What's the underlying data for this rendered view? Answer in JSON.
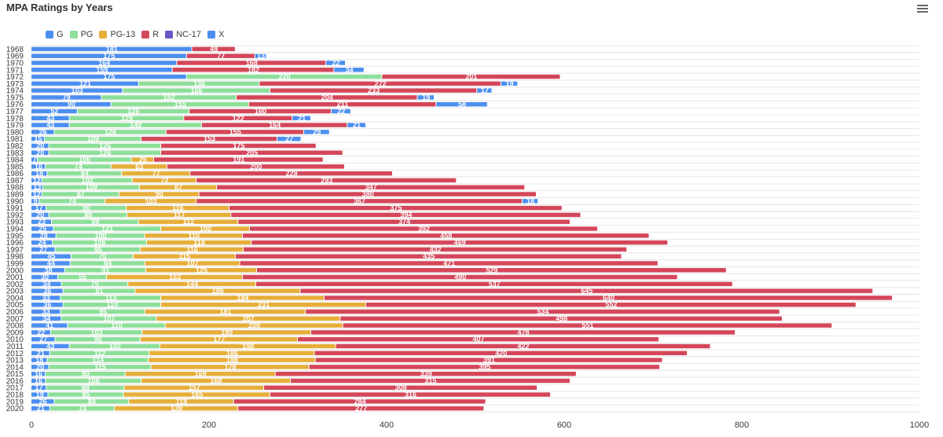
{
  "header": {
    "title": "MPA Ratings by Years"
  },
  "colors": {
    "G": "#4c8ff0",
    "PG": "#8ddf9a",
    "PG-13": "#e6ae3a",
    "R": "#d4475a",
    "NC-17": "#6b57c7",
    "X": "#4c8ff0"
  },
  "icons": {
    "menu": "hamburger-menu-icon"
  },
  "chart_data": {
    "type": "bar",
    "orientation": "horizontal",
    "stacked": true,
    "title": "MPA Ratings by Years",
    "xlim": [
      0,
      1000
    ],
    "xticks": [
      0,
      200,
      400,
      600,
      800,
      1000
    ],
    "grid": true,
    "legend_position": "top-left",
    "categories": [
      "1968",
      "1969",
      "1970",
      "1971",
      "1972",
      "1973",
      "1974",
      "1975",
      "1976",
      "1977",
      "1978",
      "1979",
      "1980",
      "1981",
      "1982",
      "1983",
      "1984",
      "1985",
      "1986",
      "1987",
      "1988",
      "1989",
      "1990",
      "1991",
      "1992",
      "1993",
      "1994",
      "1995",
      "1996",
      "1997",
      "1998",
      "1999",
      "2000",
      "2001",
      "2002",
      "2003",
      "2004",
      "2005",
      "2006",
      "2007",
      "2008",
      "2009",
      "2010",
      "2011",
      "2012",
      "2013",
      "2014",
      "2015",
      "2016",
      "2017",
      "2018",
      "2019",
      "2020"
    ],
    "series": [
      {
        "name": "G",
        "values": [
          181,
          175,
          164,
          159,
          175,
          121,
          103,
          79,
          90,
          52,
          43,
          43,
          26,
          15,
          20,
          20,
          7,
          16,
          18,
          12,
          13,
          12,
          9,
          17,
          20,
          23,
          25,
          28,
          24,
          27,
          45,
          44,
          38,
          30,
          34,
          36,
          33,
          36,
          33,
          34,
          41,
          22,
          27,
          43,
          21,
          18,
          20,
          16,
          16,
          17,
          19,
          26,
          21
        ]
      },
      {
        "name": "PG",
        "values": [
          0,
          0,
          0,
          0,
          220,
          136,
          166,
          152,
          155,
          126,
          129,
          149,
          126,
          109,
          126,
          126,
          106,
          74,
          84,
          102,
          109,
          87,
          74,
          90,
          88,
          98,
          121,
          100,
          106,
          96,
          70,
          84,
          91,
          55,
          75,
          81,
          113,
          110,
          95,
          107,
          110,
          103,
          96,
          102,
          112,
          114,
          115,
          90,
          108,
          88,
          85,
          84,
          73
        ]
      },
      {
        "name": "PG-13",
        "values": [
          0,
          0,
          0,
          0,
          0,
          0,
          0,
          0,
          0,
          0,
          0,
          0,
          0,
          0,
          0,
          0,
          25,
          63,
          77,
          72,
          87,
          90,
          103,
          116,
          117,
          112,
          100,
          110,
          118,
          116,
          115,
          107,
          125,
          153,
          144,
          186,
          184,
          231,
          181,
          207,
          200,
          190,
          177,
          198,
          186,
          188,
          178,
          169,
          168,
          157,
          165,
          118,
          139
        ]
      },
      {
        "name": "R",
        "values": [
          49,
          77,
          168,
          182,
          201,
          272,
          233,
          204,
          211,
          160,
          122,
          164,
          155,
          153,
          175,
          205,
          191,
          200,
          228,
          293,
          347,
          380,
          367,
          375,
          394,
          374,
          392,
          458,
          469,
          432,
          435,
          471,
          529,
          490,
          537,
          645,
          640,
          552,
          534,
          498,
          551,
          478,
          407,
          422,
          420,
          391,
          395,
          339,
          315,
          308,
          316,
          284,
          277
        ]
      },
      {
        "name": "NC-17",
        "values": [
          0,
          0,
          0,
          0,
          0,
          0,
          0,
          0,
          0,
          0,
          0,
          0,
          0,
          0,
          0,
          0,
          0,
          0,
          0,
          0,
          0,
          0,
          0,
          0,
          0,
          0,
          0,
          0,
          0,
          0,
          0,
          0,
          0,
          0,
          0,
          0,
          0,
          0,
          0,
          0,
          0,
          0,
          0,
          0,
          0,
          0,
          0,
          0,
          0,
          0,
          0,
          0,
          0
        ]
      },
      {
        "name": "X",
        "values": [
          0,
          13,
          22,
          34,
          0,
          19,
          17,
          19,
          58,
          22,
          21,
          21,
          29,
          27,
          0,
          0,
          0,
          0,
          0,
          0,
          0,
          0,
          18,
          0,
          0,
          0,
          0,
          0,
          0,
          0,
          0,
          0,
          0,
          0,
          0,
          0,
          0,
          0,
          0,
          0,
          0,
          0,
          0,
          0,
          0,
          0,
          0,
          0,
          0,
          0,
          0,
          0,
          0
        ]
      }
    ]
  }
}
